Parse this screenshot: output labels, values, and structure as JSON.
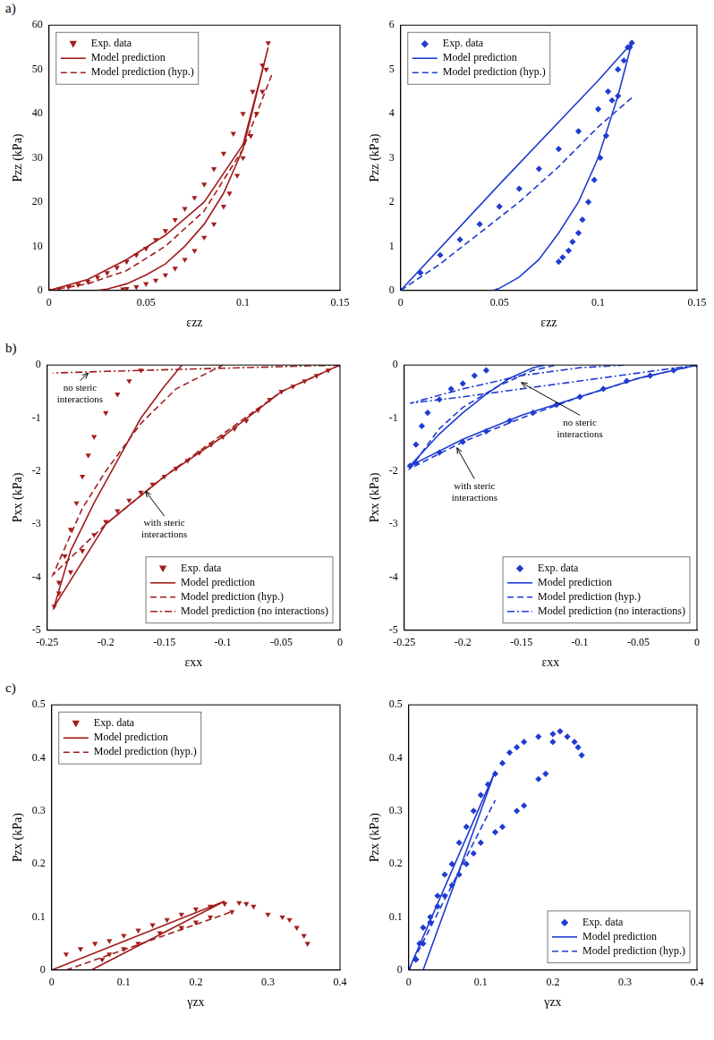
{
  "row_labels": [
    "a)",
    "b)",
    "c)"
  ],
  "chart_data": [
    {
      "type": "scatter",
      "x_label": "εzz",
      "y_label": "Pzz (kPa)",
      "grid": false,
      "legend": "upper left",
      "xlim": [
        0,
        0.15
      ],
      "xticks": [
        0,
        0.05,
        0.1,
        0.15
      ],
      "ylim": [
        0,
        60
      ],
      "yticks": [
        0,
        10,
        20,
        30,
        40,
        50,
        60
      ],
      "series": [
        {
          "name": "Exp. data",
          "type": "scatter",
          "marker": "triangle_down",
          "color": "#a31d1d",
          "x": [
            0,
            0.005,
            0.01,
            0.015,
            0.02,
            0.025,
            0.03,
            0.035,
            0.04,
            0.045,
            0.05,
            0.055,
            0.06,
            0.065,
            0.07,
            0.075,
            0.08,
            0.085,
            0.09,
            0.095,
            0.1,
            0.105,
            0.11,
            0.113,
            0.112,
            0.11,
            0.107,
            0.104,
            0.1,
            0.097,
            0.093,
            0.09,
            0.085,
            0.08,
            0.075,
            0.07,
            0.065,
            0.06,
            0.055,
            0.05,
            0.045,
            0.04,
            0.038
          ],
          "values": [
            0,
            0.3,
            0.8,
            1.3,
            2,
            3,
            4,
            5.2,
            6.5,
            8,
            9.5,
            11.5,
            13.5,
            16,
            18.5,
            21,
            24,
            27.5,
            31,
            35.5,
            40,
            45,
            51,
            56,
            50,
            45,
            40,
            35,
            30,
            26,
            22,
            19,
            15,
            12,
            9,
            7,
            5,
            3.5,
            2.3,
            1.5,
            0.8,
            0.4,
            0.3
          ]
        },
        {
          "name": "Model prediction",
          "type": "line",
          "line_style": "solid",
          "color": "#a31d1d",
          "x": [
            0,
            0.02,
            0.04,
            0.06,
            0.08,
            0.1,
            0.113,
            0.1,
            0.09,
            0.08,
            0.07,
            0.06,
            0.05,
            0.04,
            0.03,
            0.025
          ],
          "values": [
            0,
            2.5,
            7,
            12.5,
            20,
            33,
            55,
            32,
            22,
            15,
            10,
            6,
            3.5,
            1.5,
            0.3,
            0
          ]
        },
        {
          "name": "Model prediction (hyp.)",
          "type": "line",
          "line_style": "dashed",
          "color": "#a31d1d",
          "x": [
            0,
            0.02,
            0.04,
            0.06,
            0.08,
            0.1,
            0.115
          ],
          "values": [
            0,
            1.5,
            4.5,
            10,
            18,
            32,
            49
          ]
        }
      ]
    },
    {
      "type": "scatter",
      "x_label": "εzz",
      "y_label": "Pzz (kPa)",
      "grid": false,
      "legend": "upper left",
      "xlim": [
        0,
        0.15
      ],
      "xticks": [
        0,
        0.05,
        0.1,
        0.15
      ],
      "ylim": [
        0,
        6
      ],
      "yticks": [
        0,
        1,
        2,
        3,
        4,
        5,
        6
      ],
      "series": [
        {
          "name": "Exp. data",
          "type": "scatter",
          "marker": "diamond",
          "color": "#1f3cd1",
          "x": [
            0,
            0.01,
            0.02,
            0.03,
            0.04,
            0.05,
            0.06,
            0.07,
            0.08,
            0.09,
            0.1,
            0.105,
            0.11,
            0.115,
            0.117,
            0.116,
            0.113,
            0.11,
            0.107,
            0.104,
            0.101,
            0.098,
            0.095,
            0.092,
            0.09,
            0.087,
            0.085,
            0.082,
            0.08
          ],
          "values": [
            0,
            0.4,
            0.8,
            1.15,
            1.5,
            1.9,
            2.3,
            2.75,
            3.2,
            3.6,
            4.1,
            4.5,
            5,
            5.5,
            5.6,
            5.5,
            5.2,
            4.4,
            4.3,
            3.5,
            3.0,
            2.5,
            2.0,
            1.6,
            1.3,
            1.1,
            0.9,
            0.75,
            0.65
          ]
        },
        {
          "name": "Model prediction",
          "type": "line",
          "line_style": "solid",
          "color": "#1f3cd1",
          "x": [
            0,
            0.05,
            0.1,
            0.117,
            0.11,
            0.1,
            0.09,
            0.08,
            0.07,
            0.06,
            0.05,
            0.047
          ],
          "values": [
            0,
            2.4,
            4.75,
            5.6,
            4.4,
            3.0,
            2.0,
            1.3,
            0.7,
            0.3,
            0.05,
            0
          ]
        },
        {
          "name": "Model prediction (hyp.)",
          "type": "line",
          "line_style": "dashed",
          "color": "#1f3cd1",
          "x": [
            0,
            0.02,
            0.04,
            0.06,
            0.08,
            0.1,
            0.118
          ],
          "values": [
            0,
            0.6,
            1.3,
            2.0,
            2.8,
            3.7,
            4.4
          ]
        }
      ]
    },
    {
      "type": "scatter",
      "x_label": "εxx",
      "y_label": "Pxx (kPa)",
      "grid": false,
      "legend": "lower right",
      "xlim": [
        -0.25,
        0
      ],
      "xticks": [
        -0.25,
        -0.2,
        -0.15,
        -0.1,
        -0.05,
        0
      ],
      "ylim": [
        -5,
        0
      ],
      "yticks": [
        -5,
        -4,
        -3,
        -2,
        -1,
        0
      ],
      "series": [
        {
          "name": "Exp. data",
          "type": "scatter",
          "marker": "triangle_down",
          "color": "#a31d1d",
          "x": [
            0,
            -0.01,
            -0.02,
            -0.03,
            -0.04,
            -0.05,
            -0.06,
            -0.07,
            -0.08,
            -0.09,
            -0.1,
            -0.11,
            -0.12,
            -0.13,
            -0.14,
            -0.15,
            -0.16,
            -0.17,
            -0.18,
            -0.19,
            -0.2,
            -0.21,
            -0.22,
            -0.23,
            -0.24,
            -0.244,
            -0.24,
            -0.235,
            -0.23,
            -0.225,
            -0.22,
            -0.215,
            -0.21,
            -0.2,
            -0.19,
            -0.18,
            -0.17
          ],
          "values": [
            0,
            -0.1,
            -0.2,
            -0.3,
            -0.4,
            -0.5,
            -0.65,
            -0.85,
            -1.05,
            -1.2,
            -1.35,
            -1.5,
            -1.65,
            -1.8,
            -1.95,
            -2.1,
            -2.25,
            -2.4,
            -2.55,
            -2.75,
            -2.95,
            -3.2,
            -3.5,
            -3.9,
            -4.3,
            -4.55,
            -4.1,
            -3.6,
            -3.1,
            -2.6,
            -2.1,
            -1.7,
            -1.35,
            -0.9,
            -0.55,
            -0.3,
            -0.1
          ]
        },
        {
          "name": "Model prediction",
          "type": "line",
          "line_style": "solid",
          "color": "#a31d1d",
          "x": [
            0,
            -0.05,
            -0.1,
            -0.15,
            -0.2,
            -0.244,
            -0.23,
            -0.21,
            -0.19,
            -0.17,
            -0.15,
            -0.135
          ],
          "values": [
            0,
            -0.5,
            -1.35,
            -2.1,
            -3.0,
            -4.55,
            -3.5,
            -2.6,
            -1.8,
            -1.0,
            -0.4,
            0
          ]
        },
        {
          "name": "Model prediction (hyp.)",
          "type": "line",
          "line_style": "dashed",
          "color": "#a31d1d",
          "x": [
            0,
            -0.05,
            -0.1,
            -0.15,
            -0.2,
            -0.245,
            -0.22,
            -0.2,
            -0.17,
            -0.14,
            -0.1
          ],
          "values": [
            0,
            -0.5,
            -1.3,
            -2.1,
            -3.0,
            -3.95,
            -2.7,
            -2.0,
            -1.1,
            -0.45,
            0
          ]
        },
        {
          "name": "Model prediction (no interactions)",
          "type": "line",
          "line_style": "dashdot",
          "color": "#a31d1d",
          "x": [
            0,
            -0.1,
            -0.2,
            -0.245
          ],
          "values": [
            0,
            -0.06,
            -0.12,
            -0.15
          ]
        }
      ],
      "annotations": [
        {
          "text": "no steric interactions",
          "x": -0.222,
          "y": -0.55,
          "arrow_x": -0.215,
          "arrow_y": -0.15
        },
        {
          "text": "with steric interactions",
          "x": -0.15,
          "y": -3.1,
          "arrow_x": -0.166,
          "arrow_y": -2.38
        }
      ]
    },
    {
      "type": "scatter",
      "x_label": "εxx",
      "y_label": "Pxx (kPa)",
      "grid": false,
      "legend": "lower right",
      "xlim": [
        -0.25,
        0
      ],
      "xticks": [
        -0.25,
        -0.2,
        -0.15,
        -0.1,
        -0.05,
        0
      ],
      "ylim": [
        -5,
        0
      ],
      "yticks": [
        -5,
        -4,
        -3,
        -2,
        -1,
        0
      ],
      "series": [
        {
          "name": "Exp. data",
          "type": "scatter",
          "marker": "diamond",
          "color": "#1f3cd1",
          "x": [
            0,
            -0.02,
            -0.04,
            -0.06,
            -0.08,
            -0.1,
            -0.12,
            -0.14,
            -0.16,
            -0.18,
            -0.2,
            -0.22,
            -0.24,
            -0.245,
            -0.24,
            -0.235,
            -0.23,
            -0.22,
            -0.21,
            -0.2,
            -0.19,
            -0.18
          ],
          "values": [
            0,
            -0.1,
            -0.2,
            -0.3,
            -0.45,
            -0.6,
            -0.75,
            -0.9,
            -1.05,
            -1.25,
            -1.45,
            -1.65,
            -1.85,
            -1.9,
            -1.5,
            -1.15,
            -0.9,
            -0.65,
            -0.45,
            -0.35,
            -0.2,
            -0.1
          ]
        },
        {
          "name": "Model prediction",
          "type": "line",
          "line_style": "solid",
          "color": "#1f3cd1",
          "x": [
            0,
            -0.05,
            -0.1,
            -0.15,
            -0.2,
            -0.245,
            -0.22,
            -0.2,
            -0.18,
            -0.16,
            -0.14,
            -0.13
          ],
          "values": [
            0,
            -0.25,
            -0.6,
            -0.95,
            -1.4,
            -1.9,
            -1.3,
            -0.9,
            -0.55,
            -0.25,
            -0.05,
            0
          ]
        },
        {
          "name": "Model prediction (hyp.)",
          "type": "line",
          "line_style": "dashed",
          "color": "#1f3cd1",
          "x": [
            0,
            -0.05,
            -0.1,
            -0.15,
            -0.2,
            -0.245,
            -0.22,
            -0.2,
            -0.17,
            -0.14,
            -0.12
          ],
          "values": [
            0,
            -0.25,
            -0.6,
            -1.0,
            -1.45,
            -1.95,
            -1.2,
            -0.8,
            -0.4,
            -0.1,
            0
          ]
        },
        {
          "name": "Model prediction (no interactions)",
          "type": "line",
          "line_style": "dashdot",
          "color": "#1f3cd1",
          "x": [
            0,
            -0.05,
            -0.1,
            -0.15,
            -0.2,
            -0.245,
            -0.2,
            -0.15,
            -0.1,
            -0.06
          ],
          "values": [
            0,
            -0.15,
            -0.3,
            -0.45,
            -0.6,
            -0.72,
            -0.45,
            -0.2,
            -0.05,
            0
          ]
        }
      ],
      "annotations": [
        {
          "text": "no steric interactions",
          "x": -0.1,
          "y": -1.2,
          "arrow_x": -0.15,
          "arrow_y": -0.33
        },
        {
          "text": "with steric interactions",
          "x": -0.19,
          "y": -2.4,
          "arrow_x": -0.205,
          "arrow_y": -1.56
        }
      ]
    },
    {
      "type": "scatter",
      "x_label": "γzx",
      "y_label": "Pzx (kPa)",
      "grid": false,
      "legend": "upper left",
      "xlim": [
        0,
        0.4
      ],
      "xticks": [
        0,
        0.1,
        0.2,
        0.3,
        0.4
      ],
      "ylim": [
        0,
        0.5
      ],
      "yticks": [
        0,
        0.1,
        0.2,
        0.3,
        0.4,
        0.5
      ],
      "series": [
        {
          "name": "Exp. data",
          "type": "scatter",
          "marker": "triangle_down",
          "color": "#a31d1d",
          "x": [
            0.02,
            0.04,
            0.06,
            0.08,
            0.1,
            0.12,
            0.14,
            0.16,
            0.18,
            0.2,
            0.22,
            0.24,
            0.26,
            0.27,
            0.28,
            0.3,
            0.32,
            0.33,
            0.34,
            0.35,
            0.355,
            0.25,
            0.22,
            0.2,
            0.18,
            0.15,
            0.12,
            0.1,
            0.08,
            0.07
          ],
          "values": [
            0.03,
            0.04,
            0.05,
            0.055,
            0.065,
            0.075,
            0.085,
            0.095,
            0.105,
            0.115,
            0.12,
            0.125,
            0.127,
            0.125,
            0.12,
            0.105,
            0.1,
            0.095,
            0.08,
            0.065,
            0.05,
            0.11,
            0.1,
            0.09,
            0.08,
            0.07,
            0.05,
            0.04,
            0.03,
            0.02
          ]
        },
        {
          "name": "Model prediction",
          "type": "line",
          "line_style": "solid",
          "color": "#a31d1d",
          "x": [
            0,
            0.24,
            0.055
          ],
          "values": [
            0,
            0.13,
            0
          ]
        },
        {
          "name": "Model prediction (hyp.)",
          "type": "line",
          "line_style": "dashed",
          "color": "#a31d1d",
          "x": [
            0.02,
            0.25
          ],
          "values": [
            0,
            0.11
          ]
        }
      ]
    },
    {
      "type": "scatter",
      "x_label": "γzx",
      "y_label": "Pzx (kPa)",
      "grid": false,
      "legend": "lower right",
      "xlim": [
        0,
        0.4
      ],
      "xticks": [
        0,
        0.1,
        0.2,
        0.3,
        0.4
      ],
      "ylim": [
        0,
        0.5
      ],
      "yticks": [
        0,
        0.1,
        0.2,
        0.3,
        0.4,
        0.5
      ],
      "series": [
        {
          "name": "Exp. data",
          "type": "scatter",
          "marker": "diamond",
          "color": "#1f3cd1",
          "x": [
            0,
            0.01,
            0.015,
            0.02,
            0.03,
            0.04,
            0.05,
            0.06,
            0.07,
            0.08,
            0.09,
            0.1,
            0.11,
            0.12,
            0.13,
            0.14,
            0.15,
            0.16,
            0.18,
            0.2,
            0.21,
            0.22,
            0.23,
            0.235,
            0.24,
            0.2,
            0.19,
            0.18,
            0.16,
            0.15,
            0.13,
            0.12,
            0.1,
            0.09,
            0.08,
            0.07,
            0.06,
            0.05,
            0.04,
            0.03,
            0.02,
            0.01
          ],
          "values": [
            0,
            0.02,
            0.05,
            0.08,
            0.1,
            0.14,
            0.18,
            0.2,
            0.24,
            0.27,
            0.3,
            0.33,
            0.35,
            0.37,
            0.39,
            0.41,
            0.42,
            0.43,
            0.44,
            0.445,
            0.45,
            0.44,
            0.43,
            0.42,
            0.405,
            0.43,
            0.37,
            0.36,
            0.31,
            0.3,
            0.27,
            0.26,
            0.24,
            0.22,
            0.2,
            0.18,
            0.16,
            0.14,
            0.12,
            0.09,
            0.05,
            0.02
          ]
        },
        {
          "name": "Model prediction",
          "type": "line",
          "line_style": "solid",
          "color": "#1f3cd1",
          "x": [
            0,
            0.12,
            0.02
          ],
          "values": [
            0,
            0.375,
            0
          ]
        },
        {
          "name": "Model prediction (hyp.)",
          "type": "line",
          "line_style": "dashed",
          "color": "#1f3cd1",
          "x": [
            0,
            0.12
          ],
          "values": [
            0,
            0.32
          ]
        }
      ]
    }
  ]
}
